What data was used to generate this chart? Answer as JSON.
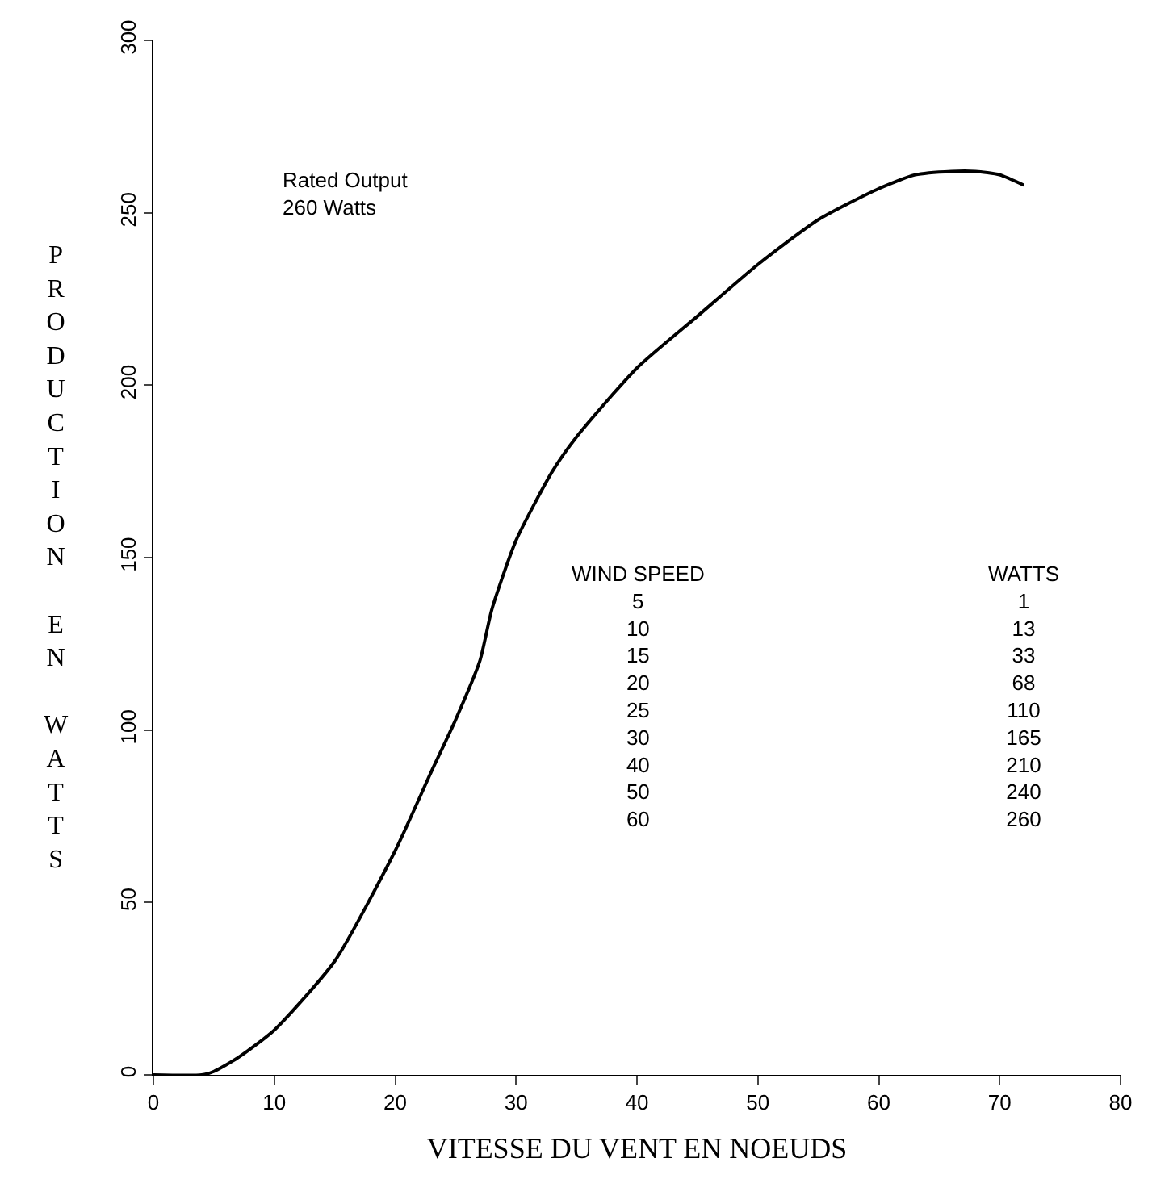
{
  "chart_data": {
    "type": "line",
    "xlabel": "VITESSE DU VENT EN NOEUDS",
    "ylabel": "PRODUCTION EN WATTS",
    "x": [
      0,
      4,
      5,
      7,
      10,
      15,
      20,
      23,
      25,
      27,
      28,
      30,
      33,
      35,
      40,
      45,
      50,
      55,
      60,
      63,
      66,
      68,
      70,
      72
    ],
    "series": [
      {
        "color": "#000000",
        "values": [
          0,
          0,
          1,
          5,
          13,
          33,
          65,
          88,
          103,
          120,
          135,
          155,
          175,
          185,
          205,
          220,
          235,
          248,
          257,
          261,
          262,
          262,
          261,
          258
        ]
      }
    ],
    "xlim": [
      0,
      80
    ],
    "ylim": [
      0,
      300
    ],
    "xticks": [
      0,
      10,
      20,
      30,
      40,
      50,
      60,
      70,
      80
    ],
    "yticks": [
      0,
      50,
      100,
      150,
      200,
      250,
      300
    ],
    "marker": "none",
    "line_style": "solid",
    "annotations": [
      "Rated Output\n260 Watts",
      "WIND SPEED\n5\n10\n15\n20\n25\n30\n40\n50\n60",
      "WATTS\n1\n13\n33\n68\n110\n165\n210\n240\n260"
    ]
  }
}
